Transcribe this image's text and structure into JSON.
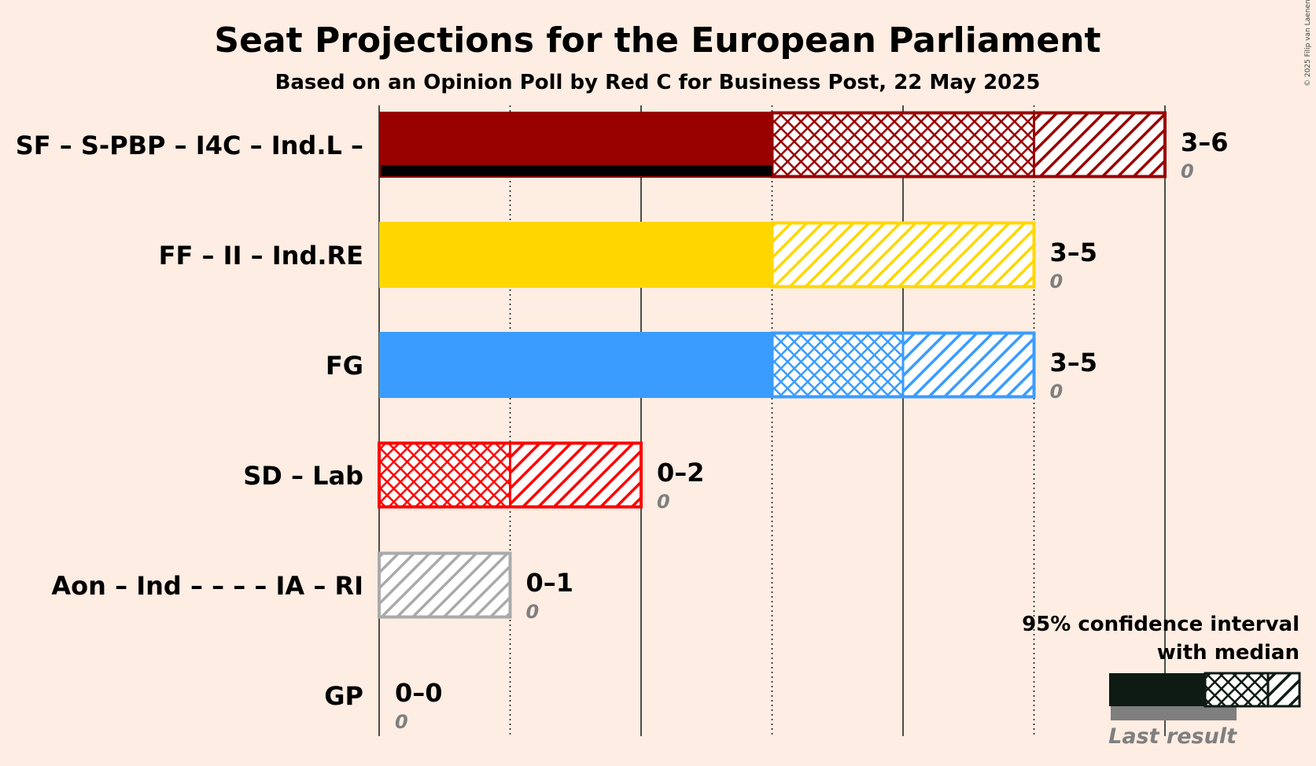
{
  "title": "Seat Projections for the European Parliament",
  "subtitle": "Based on an Opinion Poll by Red C for Business Post, 22 May 2025",
  "copyright": "© 2025 Filip van Laenen",
  "legend": {
    "line1": "95% confidence interval",
    "line2": "with median",
    "last_result": "Last result"
  },
  "chart_data": {
    "type": "bar",
    "orientation": "horizontal",
    "x_unit": "seats",
    "xlim": [
      0,
      6
    ],
    "parties": [
      {
        "name": "SF – S-PBP – I4C – Ind.L –",
        "low": 3,
        "median": 5,
        "high": 6,
        "last_result": 0,
        "range_label": "3–6",
        "last_label": "0",
        "color": "#990000"
      },
      {
        "name": "FF – II – Ind.RE",
        "low": 3,
        "median": 3,
        "high": 5,
        "last_result": 0,
        "range_label": "3–5",
        "last_label": "0",
        "color": "#FFD700"
      },
      {
        "name": "FG",
        "low": 3,
        "median": 4,
        "high": 5,
        "last_result": 0,
        "range_label": "3–5",
        "last_label": "0",
        "color": "#3A9CFF"
      },
      {
        "name": "SD – Lab",
        "low": 0,
        "median": 1,
        "high": 2,
        "last_result": 0,
        "range_label": "0–2",
        "last_label": "0",
        "color": "#FF0000"
      },
      {
        "name": "Aon – Ind – – – – IA – RI",
        "low": 0,
        "median": 0,
        "high": 1,
        "last_result": 0,
        "range_label": "0–1",
        "last_label": "0",
        "color": "#AAAAAA"
      },
      {
        "name": "GP",
        "low": 0,
        "median": 0,
        "high": 0,
        "last_result": 0,
        "range_label": "0–0",
        "last_label": "0",
        "color": "#44AA33"
      }
    ]
  }
}
